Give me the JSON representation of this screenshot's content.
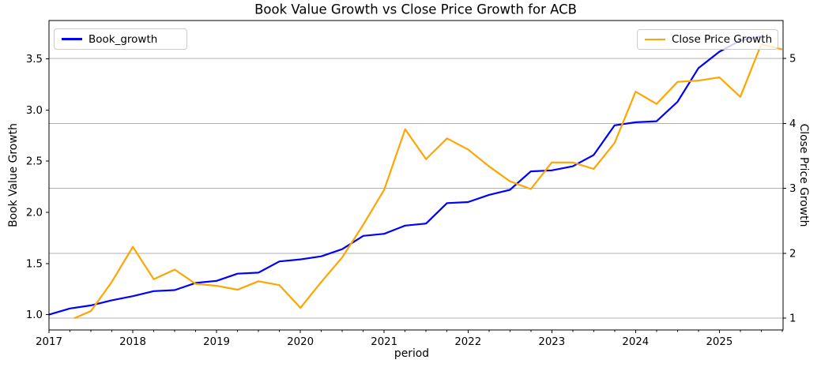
{
  "figure": {
    "title": "Book Value Growth vs Close Price Growth for ACB"
  },
  "chart_data": {
    "type": "line",
    "title": "Book Value Growth vs Close Price Growth for ACB",
    "xlabel": "period",
    "ylabel_left": "Book Value Growth",
    "ylabel_right": "Close Price Growth",
    "xlim": [
      2017.0,
      2025.76
    ],
    "ylim_left": [
      0.85,
      3.875
    ],
    "ylim_right": [
      0.82,
      5.585
    ],
    "x_ticks": [
      2017,
      2018,
      2019,
      2020,
      2021,
      2022,
      2023,
      2024,
      2025
    ],
    "x_minor_step": 0.25,
    "left_ticks": [
      "1.0",
      "1.5",
      "2.0",
      "2.5",
      "3.0",
      "3.5"
    ],
    "right_ticks": [
      "1",
      "2",
      "3",
      "4",
      "5"
    ],
    "grid": {
      "on": true,
      "axis": "right-y",
      "color": "#b0b0b0"
    },
    "legend_position": [
      "upper left",
      "upper right"
    ],
    "series": [
      {
        "name": "Book_growth",
        "axis": "left",
        "color": "#0000ff",
        "x": [
          2017.0,
          2017.25,
          2017.5,
          2017.75,
          2018.0,
          2018.25,
          2018.5,
          2018.75,
          2019.0,
          2019.25,
          2019.5,
          2019.75,
          2020.0,
          2020.25,
          2020.5,
          2020.75,
          2021.0,
          2021.25,
          2021.5,
          2021.75,
          2022.0,
          2022.25,
          2022.5,
          2022.75,
          2023.0,
          2023.25,
          2023.5,
          2023.75,
          2024.0,
          2024.25,
          2024.5,
          2024.75,
          2025.0,
          2025.25,
          2025.5
        ],
        "y": [
          1.0,
          1.06,
          1.09,
          1.14,
          1.18,
          1.23,
          1.24,
          1.31,
          1.33,
          1.4,
          1.41,
          1.52,
          1.54,
          1.57,
          1.64,
          1.77,
          1.79,
          1.87,
          1.89,
          2.09,
          2.1,
          2.17,
          2.22,
          2.4,
          2.41,
          2.45,
          2.56,
          2.85,
          2.88,
          2.89,
          3.08,
          3.41,
          3.57,
          3.68,
          3.72
        ]
      },
      {
        "name": "Close Price Growth",
        "axis": "right",
        "color": "#ffa500",
        "x": [
          2017.3,
          2017.5,
          2017.75,
          2018.0,
          2018.25,
          2018.5,
          2018.75,
          2019.0,
          2019.25,
          2019.5,
          2019.75,
          2020.0,
          2020.25,
          2020.5,
          2020.75,
          2021.0,
          2021.25,
          2021.5,
          2021.75,
          2022.0,
          2022.25,
          2022.5,
          2022.75,
          2023.0,
          2023.25,
          2023.5,
          2023.75,
          2024.0,
          2024.25,
          2024.5,
          2024.75,
          2025.0,
          2025.25,
          2025.5,
          2025.75
        ],
        "y": [
          1.0,
          1.11,
          1.56,
          2.1,
          1.6,
          1.75,
          1.53,
          1.5,
          1.44,
          1.57,
          1.51,
          1.16,
          1.56,
          1.94,
          2.44,
          2.98,
          3.91,
          3.45,
          3.77,
          3.6,
          3.34,
          3.11,
          2.99,
          3.4,
          3.4,
          3.3,
          3.7,
          4.49,
          4.3,
          4.64,
          4.66,
          4.71,
          4.41,
          5.22,
          5.14
        ]
      }
    ]
  }
}
